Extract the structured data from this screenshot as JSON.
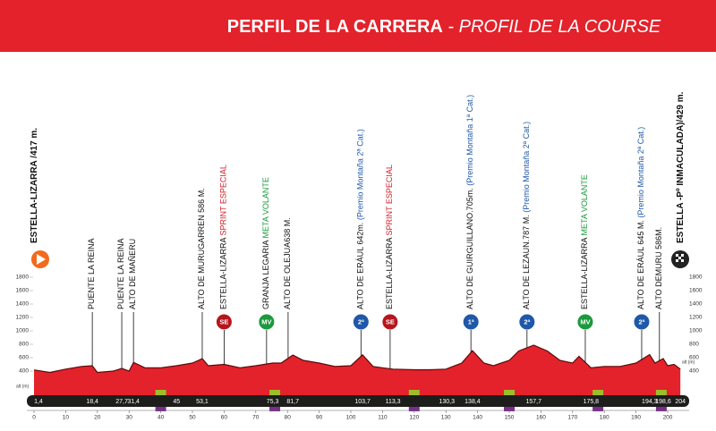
{
  "chart_data": {
    "type": "area",
    "title": "PERFIL DE LA CARRERA",
    "subtitle": "- PROFIL DE LA COURSE",
    "y_label": "alt (m)",
    "color": "#e3222b",
    "line_color": "#5a0c0c",
    "xlim": [
      0,
      204
    ],
    "xticks": [
      0,
      10,
      20,
      30,
      40,
      50,
      60,
      70,
      80,
      90,
      100,
      110,
      120,
      130,
      140,
      150,
      160,
      170,
      180,
      190,
      200
    ],
    "ylim": [
      0,
      1800
    ],
    "yticks": [
      400,
      600,
      800,
      1000,
      1200,
      1400,
      1600,
      1800
    ],
    "x": [
      0,
      5,
      10,
      15,
      18.4,
      20,
      25,
      27.7,
      30,
      31.4,
      35,
      40,
      45,
      50,
      53.1,
      55,
      60,
      65,
      70,
      75.3,
      78,
      81.7,
      85,
      90,
      95,
      100,
      103.7,
      107,
      110,
      113.3,
      120,
      125,
      130,
      135,
      138.4,
      142,
      145,
      150,
      153,
      157.7,
      162,
      166,
      170,
      172,
      175.8,
      180,
      185,
      190,
      194.3,
      196,
      198.6,
      200,
      202,
      204
    ],
    "values": [
      417,
      380,
      430,
      470,
      480,
      380,
      400,
      440,
      400,
      530,
      450,
      450,
      480,
      520,
      586,
      480,
      500,
      450,
      480,
      520,
      520,
      638,
      560,
      520,
      470,
      480,
      642,
      470,
      450,
      430,
      420,
      420,
      430,
      520,
      705,
      520,
      480,
      560,
      700,
      787,
      700,
      560,
      520,
      620,
      450,
      470,
      470,
      520,
      645,
      520,
      586,
      480,
      500,
      429
    ],
    "km_marks": {
      "values": [
        1.4,
        18.4,
        27.7,
        31.4,
        45,
        53.1,
        75.3,
        81.7,
        103.7,
        113.3,
        130.3,
        138.4,
        157.7,
        175.8,
        194.3,
        198.6,
        204
      ],
      "value_labels": [
        "1,4",
        "18,4",
        "27,7",
        "31,4",
        "45",
        "53,1",
        "75,3",
        "81,7",
        "103,7",
        "113,3",
        "130,3",
        "138,4",
        "157,7",
        "175,8",
        "194,3",
        "198,6",
        "204"
      ]
    },
    "points": [
      {
        "km": 0,
        "name": "ESTELLA-LIZARRA /417 m.",
        "bold": true
      },
      {
        "km": 18.4,
        "name": "PUENTE LA REINA"
      },
      {
        "km": 27.7,
        "name": "PUENTE LA REINA"
      },
      {
        "km": 31.4,
        "name": "ALTO DE MAÑERU"
      },
      {
        "km": 53.1,
        "name": "ALTO DE MURUGARREN 586 M."
      },
      {
        "km": 60,
        "name": "ESTELLA-LIZARRA",
        "tag": "SPRINT ESPECIAL",
        "tag_color": "#d0202a",
        "icon": "SE",
        "icon_color": "#b5161c"
      },
      {
        "km": 73.4,
        "name": "GRANJA LEGARIA",
        "tag": "META VOLANTE",
        "tag_color": "#1a9a3c",
        "icon": "MV",
        "icon_color": "#1a9a3c"
      },
      {
        "km": 80.2,
        "name": "ALTO DE OLEJUA638 M."
      },
      {
        "km": 103.2,
        "name": "ALTO DE ERÁUL 642m.",
        "tag": "(Premio Montaña 2ª Cat.)",
        "tag_color": "#1f58a8",
        "icon": "2ª",
        "icon_color": "#1f58a8"
      },
      {
        "km": 112.4,
        "name": "ESTELLA-LIZARRA",
        "tag": "SPRINT ESPECIAL",
        "tag_color": "#d0202a",
        "icon": "SE",
        "icon_color": "#b5161c"
      },
      {
        "km": 137.9,
        "name": "ALTO DE GUIRGUILLANO.705m.",
        "tag": "(Premio Montaña 1ª Cat.)",
        "tag_color": "#1f58a8",
        "icon": "1ª",
        "icon_color": "#1f58a8"
      },
      {
        "km": 155.6,
        "name": "ALTO DE LEZAUN.787 M.",
        "tag": "(Premio Montaña 2ª Cat.)",
        "tag_color": "#1f58a8",
        "icon": "2ª",
        "icon_color": "#1f58a8"
      },
      {
        "km": 174,
        "name": "ESTELLA-LIZARRA",
        "tag": "META VOLANTE",
        "tag_color": "#1a9a3c",
        "icon": "MV",
        "icon_color": "#1a9a3c"
      },
      {
        "km": 191.8,
        "name": "ALTO DE ERÁUL 645 M.",
        "tag": "(Premio Montaña 2ª Cat.)",
        "tag_color": "#1f58a8",
        "icon": "2ª",
        "icon_color": "#1f58a8"
      },
      {
        "km": 197.4,
        "name": "ALTO DEMURU 586M."
      },
      {
        "km": 204,
        "name": "ESTELLA -Pº INMACULADA)/429 m.",
        "bold": true
      }
    ]
  }
}
